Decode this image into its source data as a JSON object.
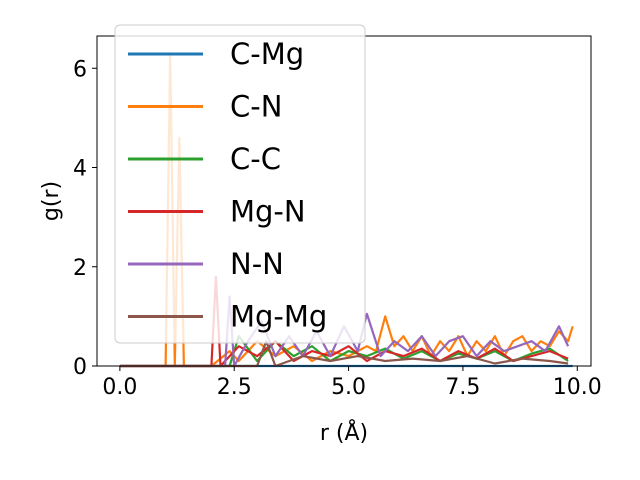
{
  "chart_data": {
    "type": "line",
    "xlabel": "r (Å)",
    "ylabel": "g(r)",
    "xlim": [
      -0.5,
      10.3
    ],
    "ylim": [
      0,
      6.65
    ],
    "xticks": [
      "0.0",
      "2.5",
      "5.0",
      "7.5",
      "10.0"
    ],
    "yticks": [
      "0",
      "2",
      "4",
      "6"
    ],
    "legend_position": "upper-left",
    "grid": false,
    "series": [
      {
        "name": "C-Mg",
        "color": "#1f77b4",
        "x": [
          0.0,
          9.9
        ],
        "y": [
          0.0,
          0.0
        ]
      },
      {
        "name": "C-N",
        "color": "#ff7f0e",
        "x": [
          0.0,
          1.0,
          1.1,
          1.2,
          1.3,
          1.4,
          2.0,
          2.4,
          2.6,
          3.0,
          3.4,
          3.8,
          4.2,
          4.6,
          5.0,
          5.4,
          5.6,
          5.8,
          6.0,
          6.2,
          6.4,
          6.6,
          6.8,
          7.0,
          7.2,
          7.4,
          7.6,
          7.8,
          8.0,
          8.2,
          8.4,
          8.6,
          8.8,
          9.0,
          9.2,
          9.4,
          9.6,
          9.8,
          9.9
        ],
        "y": [
          0.0,
          0.0,
          6.3,
          0.0,
          4.6,
          0.0,
          0.0,
          0.3,
          0.1,
          0.5,
          0.2,
          0.4,
          0.1,
          0.3,
          0.2,
          0.4,
          0.3,
          1.0,
          0.4,
          0.6,
          0.3,
          0.6,
          0.2,
          0.5,
          0.3,
          0.6,
          0.2,
          0.5,
          0.3,
          0.6,
          0.2,
          0.5,
          0.6,
          0.3,
          0.5,
          0.4,
          0.7,
          0.5,
          0.8
        ]
      },
      {
        "name": "C-C",
        "color": "#2ca02c",
        "x": [
          0.0,
          2.4,
          2.6,
          3.0,
          3.4,
          3.8,
          4.2,
          4.6,
          5.0,
          5.4,
          5.8,
          6.2,
          6.6,
          7.0,
          7.4,
          7.8,
          8.2,
          8.6,
          9.0,
          9.4,
          9.8
        ],
        "y": [
          0.0,
          0.0,
          0.6,
          0.1,
          0.5,
          0.2,
          0.4,
          0.1,
          0.3,
          0.2,
          0.35,
          0.15,
          0.3,
          0.1,
          0.25,
          0.15,
          0.3,
          0.1,
          0.25,
          0.35,
          0.1
        ]
      },
      {
        "name": "Mg-N",
        "color": "#d62728",
        "x": [
          0.0,
          2.0,
          2.1,
          2.2,
          2.6,
          3.0,
          3.4,
          3.8,
          4.2,
          4.6,
          5.0,
          5.4,
          5.8,
          6.2,
          6.6,
          7.0,
          7.4,
          7.8,
          8.2,
          8.6,
          9.0,
          9.4,
          9.8
        ],
        "y": [
          0.0,
          0.0,
          1.8,
          0.0,
          0.4,
          0.2,
          0.5,
          0.1,
          0.3,
          0.2,
          0.4,
          0.1,
          0.3,
          0.2,
          0.35,
          0.1,
          0.3,
          0.15,
          0.35,
          0.1,
          0.2,
          0.3,
          0.15
        ]
      },
      {
        "name": "N-N",
        "color": "#9467bd",
        "x": [
          0.0,
          2.3,
          2.4,
          2.5,
          2.8,
          3.1,
          3.4,
          3.7,
          4.0,
          4.3,
          4.6,
          4.9,
          5.2,
          5.4,
          5.7,
          6.0,
          6.3,
          6.6,
          6.9,
          7.2,
          7.5,
          7.8,
          8.1,
          8.4,
          8.7,
          9.0,
          9.3,
          9.6,
          9.8
        ],
        "y": [
          0.0,
          0.0,
          1.4,
          0.0,
          0.5,
          0.9,
          0.2,
          0.6,
          0.2,
          0.7,
          0.2,
          0.8,
          0.3,
          1.05,
          0.2,
          0.5,
          0.3,
          0.6,
          0.2,
          0.5,
          0.6,
          0.2,
          0.5,
          0.3,
          0.4,
          0.5,
          0.3,
          0.8,
          0.4
        ]
      },
      {
        "name": "Mg-Mg",
        "color": "#8c564b",
        "x": [
          0.0,
          3.0,
          3.2,
          3.4,
          4.0,
          4.6,
          5.2,
          5.8,
          6.4,
          7.0,
          7.6,
          8.2,
          8.8,
          9.4,
          9.8
        ],
        "y": [
          0.0,
          0.0,
          0.5,
          0.0,
          0.2,
          0.1,
          0.2,
          0.1,
          0.15,
          0.1,
          0.2,
          0.05,
          0.15,
          0.1,
          0.05
        ]
      }
    ]
  }
}
